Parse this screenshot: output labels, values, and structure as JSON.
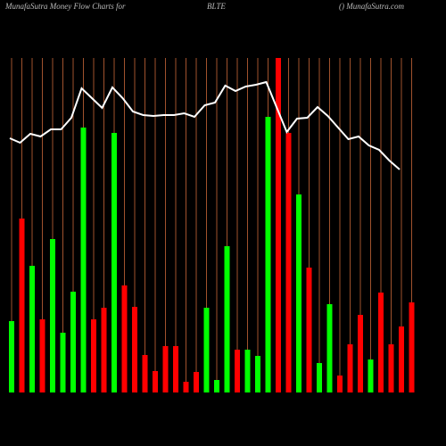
{
  "chart_data": {
    "type": "bar",
    "title": "MunafaSutra  Money Flow  Charts for",
    "subtitle": "BLTE",
    "source": "() MunafaSutra.com",
    "ylim": [
      0,
      375
    ],
    "grid": true,
    "grid_color": "#a0522d",
    "background": "#000000",
    "series": [
      {
        "type": "bar",
        "values": [
          80,
          195,
          142,
          82,
          172,
          67,
          113,
          297,
          82,
          95,
          291,
          120,
          96,
          42,
          24,
          52,
          52,
          12,
          23,
          95,
          14,
          164,
          48,
          48,
          41,
          309,
          375,
          291,
          222,
          140,
          33,
          99,
          19,
          54,
          87,
          37,
          112,
          54,
          74,
          101
        ],
        "colors": [
          "#00ff00",
          "#ff0000",
          "#00ff00",
          "#ff0000",
          "#00ff00",
          "#00ff00",
          "#00ff00",
          "#00ff00",
          "#ff0000",
          "#ff0000",
          "#00ff00",
          "#ff0000",
          "#ff0000",
          "#ff0000",
          "#ff0000",
          "#ff0000",
          "#ff0000",
          "#ff0000",
          "#ff0000",
          "#00ff00",
          "#00ff00",
          "#00ff00",
          "#ff0000",
          "#00ff00",
          "#00ff00",
          "#00ff00",
          "#ff0000",
          "#ff0000",
          "#00ff00",
          "#ff0000",
          "#00ff00",
          "#00ff00",
          "#ff0000",
          "#ff0000",
          "#ff0000",
          "#00ff00",
          "#ff0000",
          "#ff0000",
          "#ff0000",
          "#ff0000"
        ]
      },
      {
        "type": "line",
        "color": "#ffffff",
        "values": [
          285,
          280,
          290,
          287,
          295,
          295,
          308,
          341,
          330,
          319,
          342,
          330,
          315,
          311,
          310,
          311,
          311,
          313,
          309,
          322,
          325,
          344,
          338,
          343,
          345,
          348,
          320,
          292,
          307,
          308,
          320,
          310,
          297,
          284,
          287,
          277,
          272,
          260,
          250
        ]
      }
    ]
  }
}
